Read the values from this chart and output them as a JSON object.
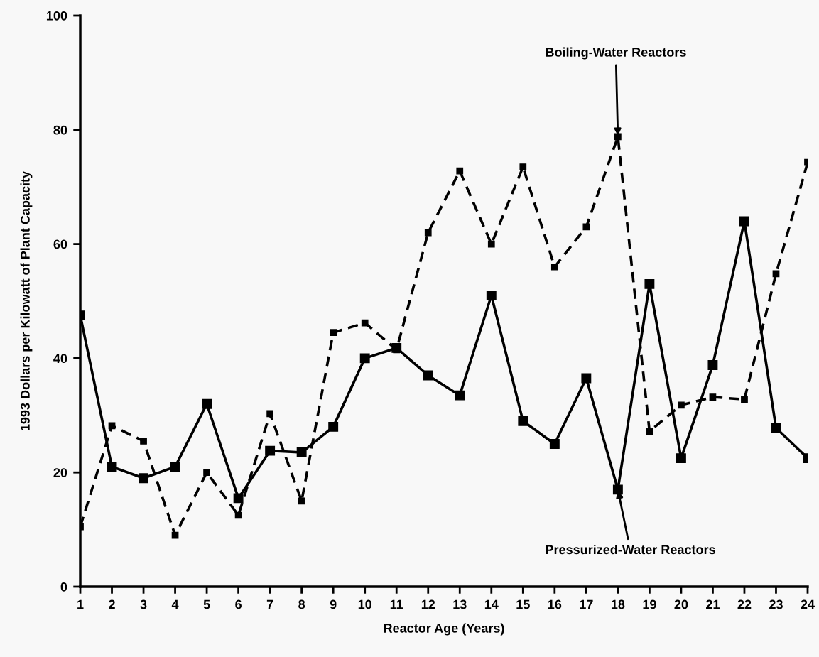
{
  "chart_data": {
    "type": "line",
    "xlabel": "Reactor Age (Years)",
    "ylabel": "1993 Dollars per Kilowatt of Plant Capacity",
    "x": [
      1,
      2,
      3,
      4,
      5,
      6,
      7,
      8,
      9,
      10,
      11,
      12,
      13,
      14,
      15,
      16,
      17,
      18,
      19,
      20,
      21,
      22,
      23,
      24
    ],
    "series": [
      {
        "color": "#000000",
        "line_style": "solid",
        "values": [
          47.5,
          21,
          19,
          21,
          32,
          15.5,
          23.8,
          23.5,
          28,
          40,
          41.8,
          37,
          33.5,
          51,
          29,
          25,
          36.5,
          17,
          53,
          22.5,
          38.8,
          64,
          27.8,
          22.5
        ]
      },
      {
        "color": "#000000",
        "line_style": "dashed",
        "values": [
          10.5,
          28.2,
          25.5,
          9,
          20,
          12.5,
          30.3,
          15,
          44.5,
          46.2,
          41.5,
          62,
          72.8,
          60,
          73.5,
          56,
          63,
          78.8,
          27.2,
          31.8,
          33.2,
          32.8,
          54.8,
          74.3
        ]
      }
    ],
    "marker": "square",
    "xlim": [
      1,
      24
    ],
    "xticks": [
      1,
      2,
      3,
      4,
      5,
      6,
      7,
      8,
      9,
      10,
      11,
      12,
      13,
      14,
      15,
      16,
      17,
      18,
      19,
      20,
      21,
      22,
      23,
      24
    ],
    "ylim": [
      0,
      100
    ],
    "yticks": [
      0,
      20,
      40,
      60,
      80,
      100
    ],
    "grid": false,
    "legend": false,
    "annotations": [
      {
        "text": "Boiling-Water Reactors",
        "x": 18,
        "y": 78.8
      },
      {
        "text": "Pressurized-Water Reactors",
        "x": 18,
        "y": 17
      }
    ]
  }
}
